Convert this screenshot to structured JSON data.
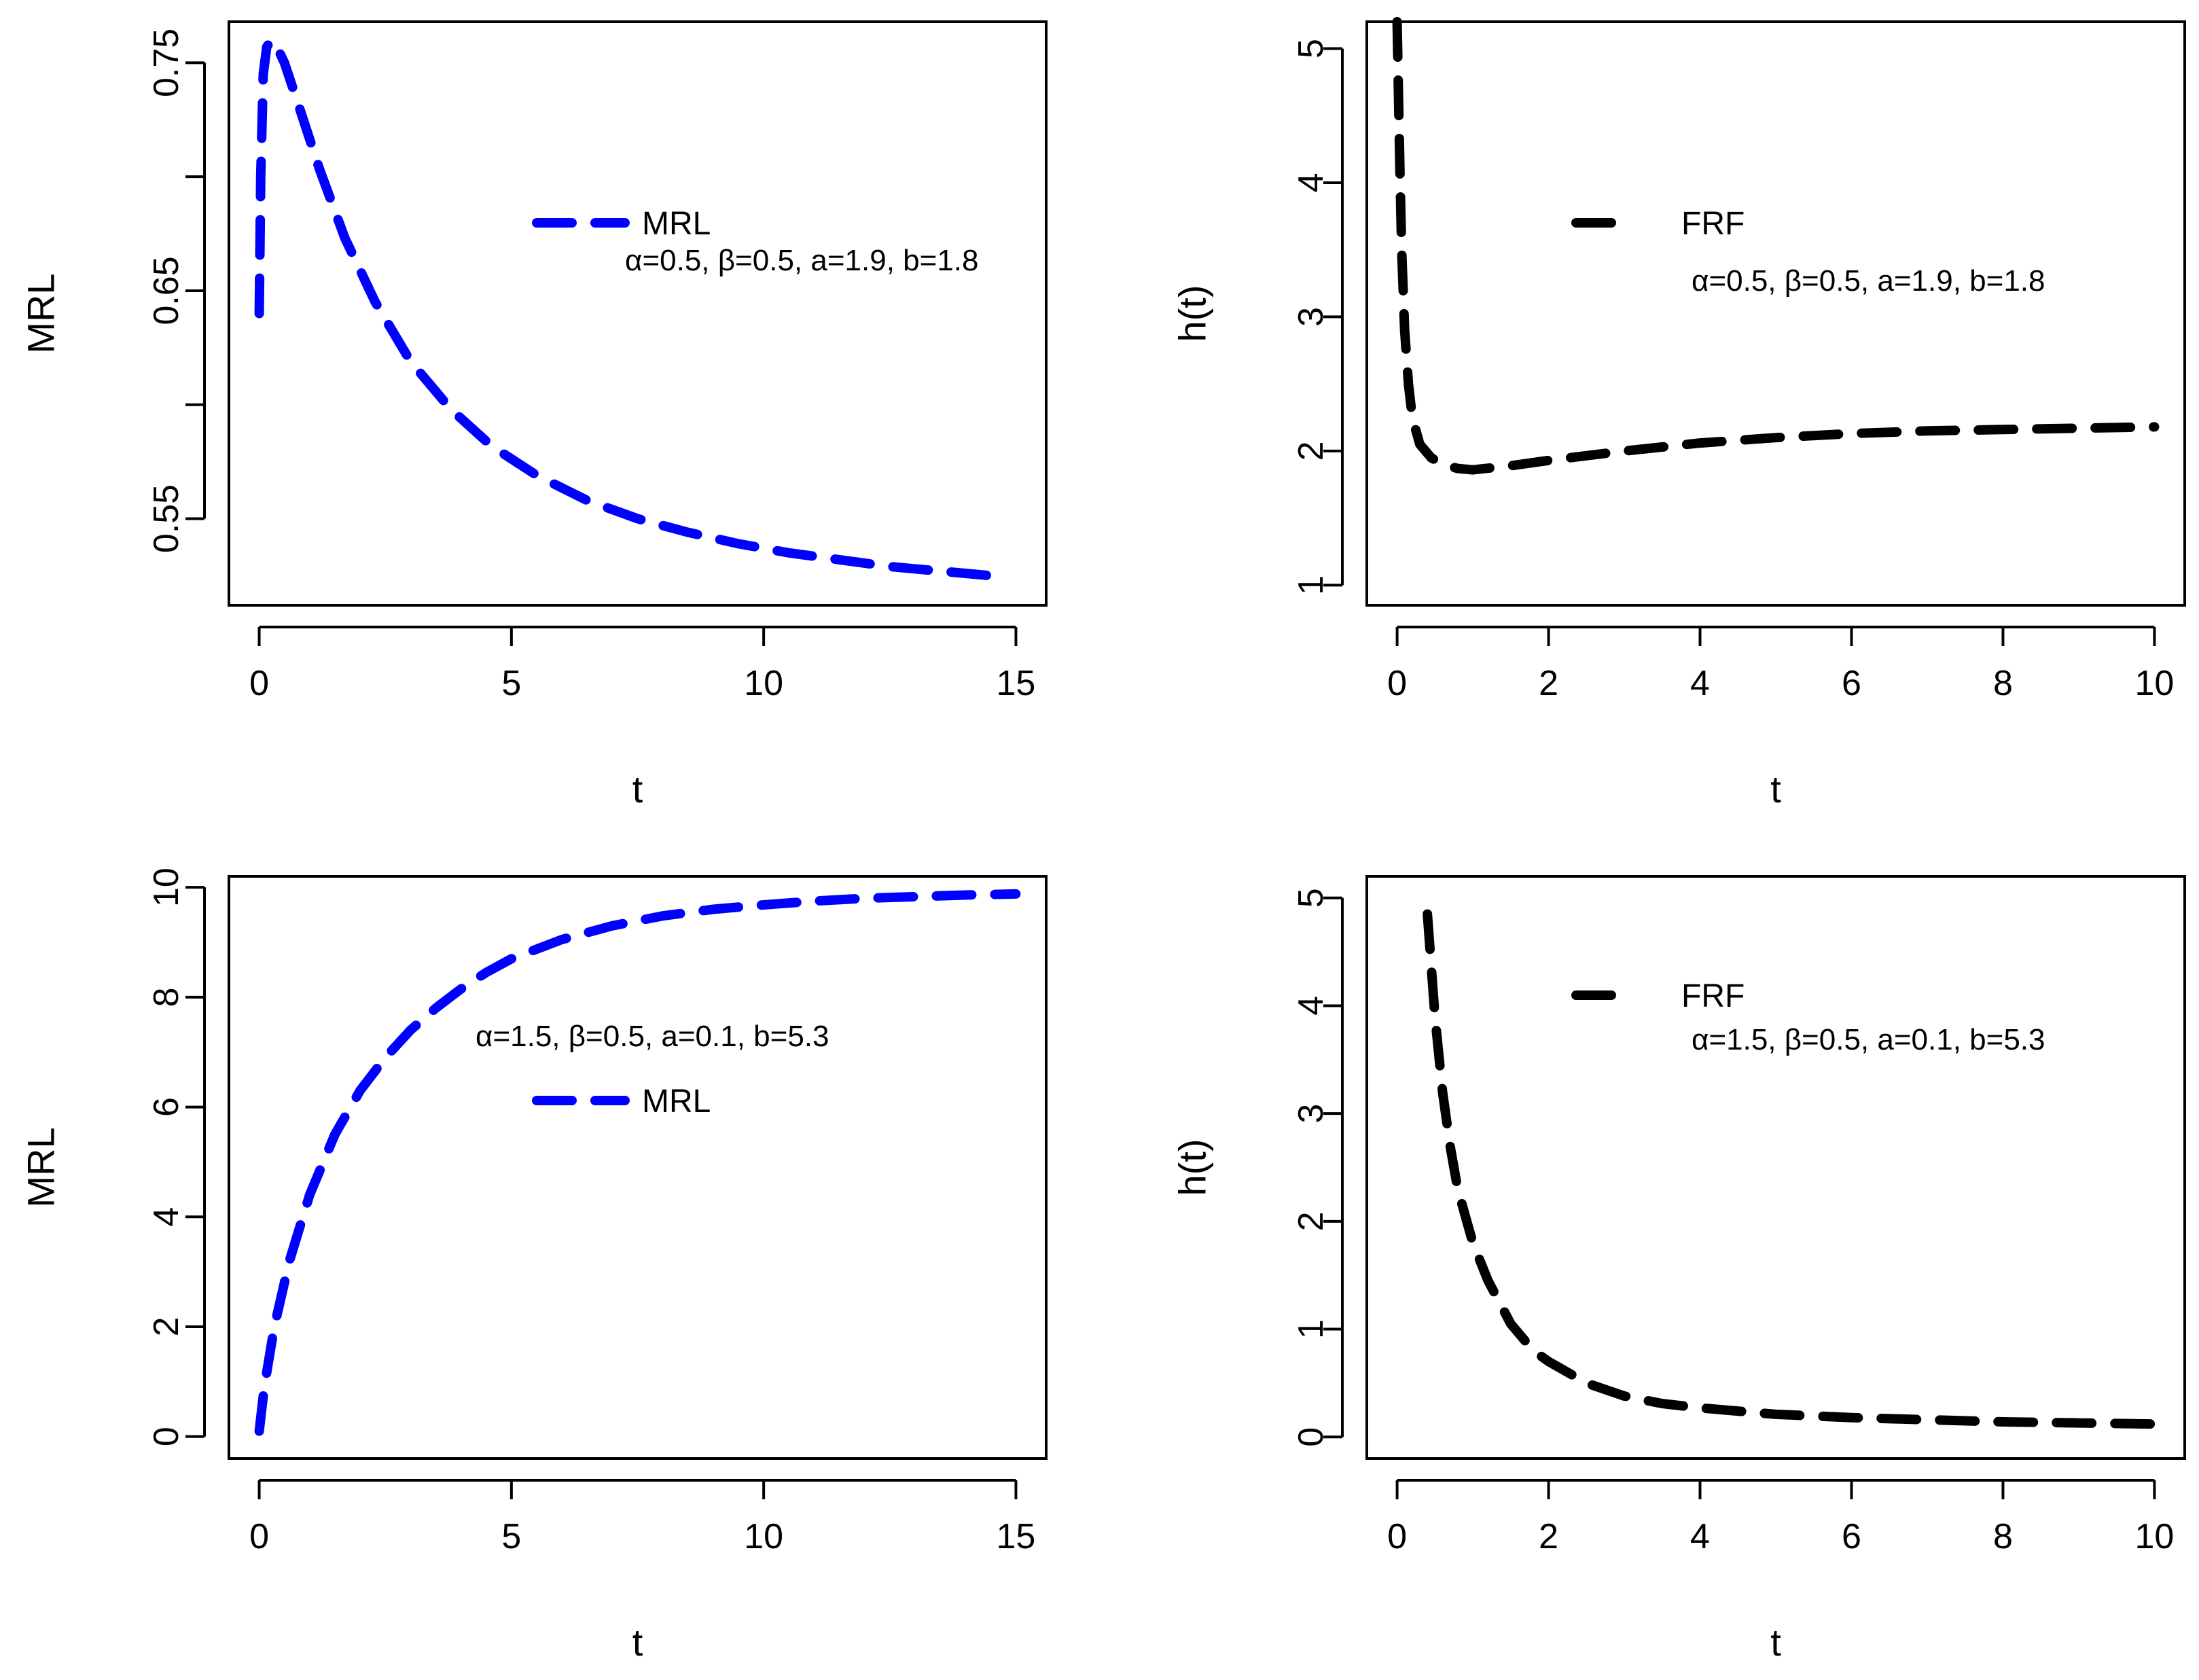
{
  "chart_data": [
    {
      "type": "line",
      "xlabel": "t",
      "ylabel": "MRL",
      "xlim": [
        -0.6,
        15.6
      ],
      "ylim": [
        0.512,
        0.768
      ],
      "xticks": [
        0,
        5,
        10,
        15
      ],
      "yticks": [
        0.55,
        0.6,
        0.65,
        0.7,
        0.75
      ],
      "yticklabels": [
        "0.55",
        "",
        "0.65",
        "",
        "0.75"
      ],
      "grid": false,
      "legend": {
        "entries": [
          {
            "label": "MRL",
            "color": "#0000ff"
          }
        ],
        "placement": "top-right"
      },
      "annotation": "α=0.5, β=0.5, a=1.9, b=1.8",
      "series": [
        {
          "name": "MRL",
          "color": "#0000ff",
          "dash": "dashed",
          "x": [
            0.0,
            0.03,
            0.08,
            0.15,
            0.25,
            0.35,
            0.5,
            0.8,
            1.2,
            1.7,
            2.3,
            3.0,
            3.8,
            4.6,
            5.5,
            6.5,
            7.5,
            8.5,
            9.5,
            10.5,
            11.5,
            12.5,
            13.5,
            14.5
          ],
          "y": [
            0.64,
            0.7,
            0.745,
            0.757,
            0.76,
            0.757,
            0.75,
            0.73,
            0.703,
            0.673,
            0.645,
            0.619,
            0.598,
            0.582,
            0.569,
            0.558,
            0.55,
            0.544,
            0.539,
            0.535,
            0.532,
            0.529,
            0.527,
            0.525
          ]
        }
      ]
    },
    {
      "type": "line",
      "xlabel": "t",
      "ylabel": "h(t)",
      "xlim": [
        -0.4,
        10.4
      ],
      "ylim": [
        0.85,
        5.2
      ],
      "xticks": [
        0,
        2,
        4,
        6,
        8,
        10
      ],
      "yticks": [
        1,
        2,
        3,
        4,
        5
      ],
      "yticklabels": [
        "1",
        "2",
        "3",
        "4",
        "5"
      ],
      "grid": false,
      "legend": {
        "entries": [
          {
            "label": "FRF",
            "color": "#000000"
          }
        ],
        "placement": "top-right"
      },
      "annotation": "α=0.5, β=0.5, a=1.9, b=1.8",
      "series": [
        {
          "name": "FRF",
          "color": "#000000",
          "dash": "dashed",
          "x": [
            0.0,
            0.02,
            0.04,
            0.06,
            0.1,
            0.15,
            0.2,
            0.3,
            0.45,
            0.6,
            0.8,
            1.0,
            1.5,
            2.0,
            3.0,
            4.0,
            5.0,
            6.0,
            7.0,
            8.0,
            9.0,
            10.0
          ],
          "y": [
            5.2,
            4.6,
            4.0,
            3.5,
            2.9,
            2.5,
            2.25,
            2.05,
            1.95,
            1.9,
            1.87,
            1.86,
            1.89,
            1.93,
            2.0,
            2.06,
            2.1,
            2.13,
            2.15,
            2.16,
            2.17,
            2.18
          ]
        }
      ]
    },
    {
      "type": "line",
      "xlabel": "t",
      "ylabel": "MRL",
      "xlim": [
        -0.6,
        15.6
      ],
      "ylim": [
        -0.4,
        10.2
      ],
      "xticks": [
        0,
        5,
        10,
        15
      ],
      "yticks": [
        0,
        2,
        4,
        6,
        8,
        10
      ],
      "yticklabels": [
        "0",
        "2",
        "4",
        "6",
        "8",
        "10"
      ],
      "grid": false,
      "legend": {
        "entries": [
          {
            "label": "MRL",
            "color": "#0000ff"
          }
        ],
        "placement": "top-right"
      },
      "annotation": "α=1.5, β=0.5, a=0.1, b=5.3",
      "series": [
        {
          "name": "MRL",
          "color": "#0000ff",
          "dash": "dashed",
          "x": [
            0.0,
            0.1,
            0.3,
            0.6,
            1.0,
            1.5,
            2.0,
            2.5,
            3.0,
            3.5,
            4.0,
            4.5,
            5.0,
            6.0,
            7.0,
            8.0,
            9.0,
            10.0,
            11.0,
            12.0,
            13.0,
            14.0,
            15.0
          ],
          "y": [
            0.1,
            0.9,
            2.0,
            3.2,
            4.4,
            5.5,
            6.3,
            6.9,
            7.4,
            7.8,
            8.15,
            8.45,
            8.7,
            9.05,
            9.3,
            9.48,
            9.6,
            9.68,
            9.75,
            9.8,
            9.83,
            9.86,
            9.88
          ]
        }
      ]
    },
    {
      "type": "line",
      "xlabel": "t",
      "ylabel": "h(t)",
      "xlim": [
        -0.4,
        10.4
      ],
      "ylim": [
        -0.2,
        5.2
      ],
      "xticks": [
        0,
        2,
        4,
        6,
        8,
        10
      ],
      "yticks": [
        0,
        1,
        2,
        3,
        4,
        5
      ],
      "yticklabels": [
        "0",
        "1",
        "2",
        "3",
        "4",
        "5"
      ],
      "grid": false,
      "legend": {
        "entries": [
          {
            "label": "FRF",
            "color": "#000000"
          }
        ],
        "placement": "top-right"
      },
      "annotation": "α=1.5, β=0.5, a=0.1, b=5.3",
      "series": [
        {
          "name": "FRF",
          "color": "#000000",
          "dash": "dashed",
          "x": [
            0.4,
            0.5,
            0.6,
            0.7,
            0.8,
            1.0,
            1.2,
            1.5,
            1.8,
            2.0,
            2.5,
            3.0,
            3.5,
            4.0,
            5.0,
            6.0,
            7.0,
            8.0,
            9.0,
            10.0
          ],
          "y": [
            4.85,
            3.9,
            3.2,
            2.7,
            2.3,
            1.8,
            1.45,
            1.05,
            0.8,
            0.7,
            0.5,
            0.38,
            0.31,
            0.27,
            0.21,
            0.18,
            0.16,
            0.14,
            0.13,
            0.12
          ]
        }
      ]
    }
  ]
}
